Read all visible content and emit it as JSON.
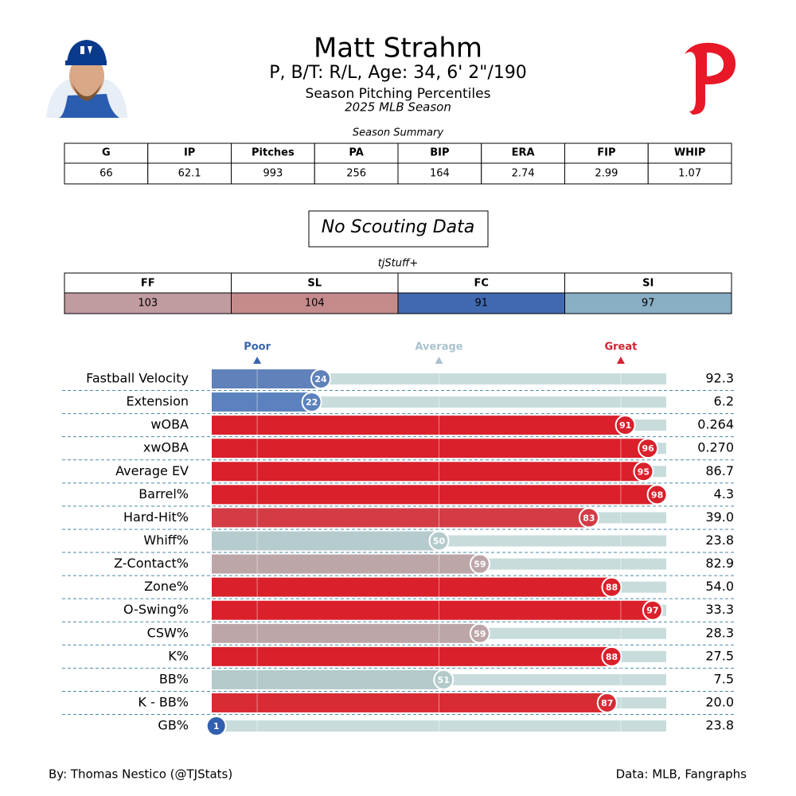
{
  "header": {
    "name": "Matt Strahm",
    "bio": "P, B/T: R/L, Age: 34, 6' 2\"/190",
    "subtitle": "Season Pitching Percentiles",
    "season": "2025 MLB Season"
  },
  "summary": {
    "title": "Season Summary",
    "headers": [
      "G",
      "IP",
      "Pitches",
      "PA",
      "BIP",
      "ERA",
      "FIP",
      "WHIP"
    ],
    "values": [
      66,
      62.1,
      993,
      256,
      164,
      2.74,
      2.99,
      1.07
    ]
  },
  "scouting": "No Scouting Data",
  "tjstuff": {
    "title": "tjStuff+",
    "headers": [
      "FF",
      "SL",
      "FC",
      "SI"
    ],
    "values": [
      103,
      104,
      91,
      97
    ],
    "colors": [
      "#c09ba0",
      "#c58a8c",
      "#4169b0",
      "#8aaec3"
    ]
  },
  "chart_data": {
    "type": "percentile",
    "categories": [
      "Fastball Velocity",
      "Extension",
      "wOBA",
      "xwOBA",
      "Average EV",
      "Barrel%",
      "Hard-Hit%",
      "Whiff%",
      "Z-Contact%",
      "Zone%",
      "O-Swing%",
      "CSW%",
      "K%",
      "BB%",
      "K - BB%",
      "GB%"
    ],
    "values": [
      24,
      22,
      91,
      96,
      95,
      98,
      83,
      50,
      59,
      88,
      97,
      59,
      88,
      51,
      87,
      1
    ],
    "stats": [
      "92.3",
      "6.2",
      "0.264",
      "0.270",
      "86.7",
      "4.3",
      "39.0",
      "23.8",
      "82.9",
      "54.0",
      "33.3",
      "28.3",
      "27.5",
      "7.5",
      "20.0",
      "23.8"
    ],
    "colors": [
      "#6081b9",
      "#5b82be",
      "#d9202b",
      "#d9202b",
      "#d9202b",
      "#d9202b",
      "#d33c45",
      "#b5cbcd",
      "#bca6a8",
      "#d9202b",
      "#d9202b",
      "#bca6a8",
      "#d9202b",
      "#b3c9ca",
      "#d82b34",
      "#3160b0"
    ],
    "track_color": "#c8dcdc",
    "xlim": [
      0,
      100
    ],
    "xticks": [
      {
        "value": 10,
        "label": "Poor"
      },
      {
        "value": 50,
        "label": "Average"
      },
      {
        "value": 90,
        "label": "Great"
      }
    ],
    "xtick_colors": [
      "#3a64ad",
      "#aac3cf",
      "#d32230"
    ]
  },
  "footer": {
    "left": "By: Thomas Nestico (@TJStats)",
    "right": "Data: MLB, Fangraphs"
  }
}
